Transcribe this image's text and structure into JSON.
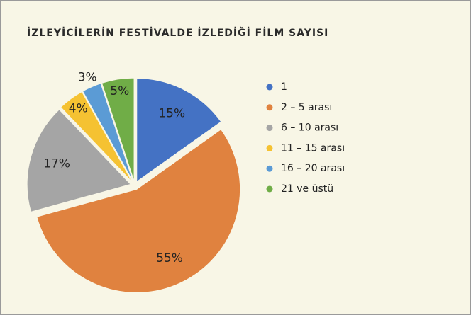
{
  "chart_data": {
    "type": "pie",
    "title": "İZLEYİCİLERİN FESTİVALDE İZLEDİĞİ FİLM SAYISI",
    "categories": [
      "1",
      "2 – 5 arası",
      "6 – 10 arası",
      "11 – 15 arası",
      "16 – 20 arası",
      "21 ve üstü"
    ],
    "values": [
      15,
      55,
      17,
      4,
      3,
      5
    ],
    "value_labels": [
      "15%",
      "55%",
      "17%",
      "4%",
      "3%",
      "5%"
    ],
    "colors": [
      "#4472c4",
      "#e0823f",
      "#a5a5a5",
      "#f5c232",
      "#5b9bd5",
      "#70ad47"
    ],
    "legend": "right",
    "exploded": true
  }
}
